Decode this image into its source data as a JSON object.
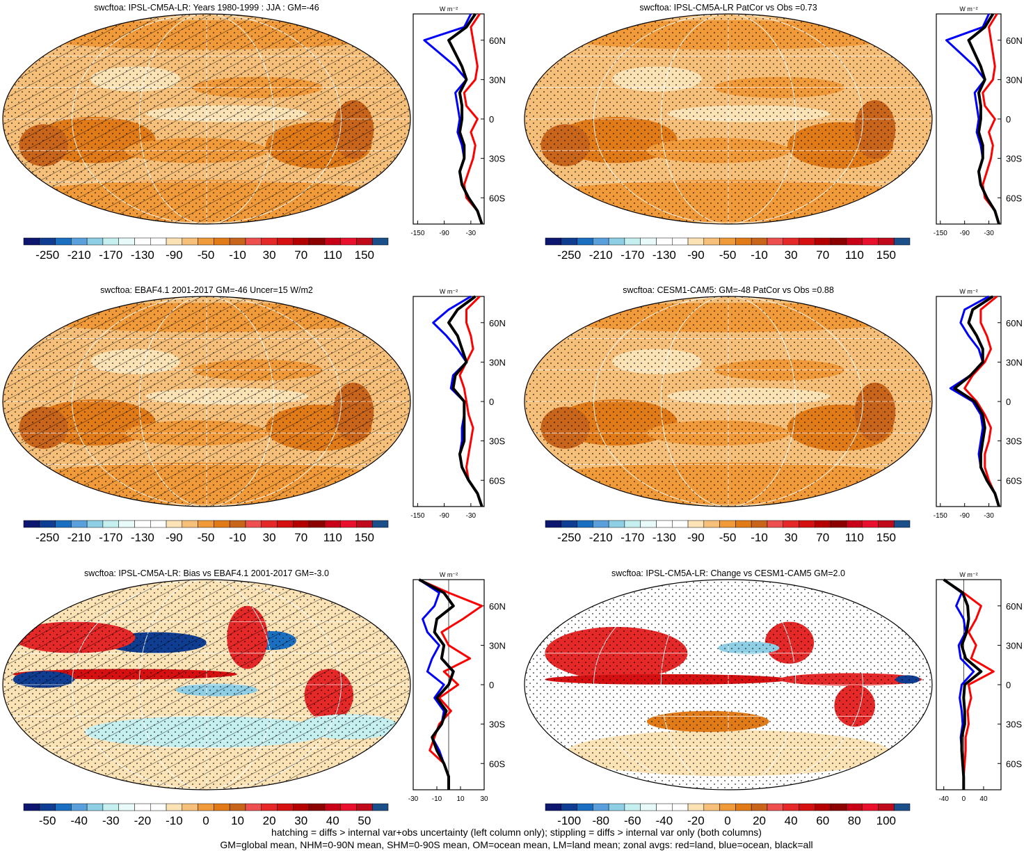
{
  "colormap_colors": [
    "#0d1770",
    "#0e3d91",
    "#1a6fc0",
    "#5aa0dc",
    "#8ecfe5",
    "#c6eff0",
    "#e9fafa",
    "#ffffff",
    "#ffffff",
    "#fbe3b6",
    "#f6c07a",
    "#f19a3a",
    "#e07b18",
    "#c8651a",
    "#ee5050",
    "#e52828",
    "#d61010",
    "#b40000",
    "#8c0000",
    "#c80018",
    "#e8102c",
    "#c00a1c",
    "#1a4f8a"
  ],
  "footer": {
    "line1": "hatching = diffs > internal var+obs uncertainty (left column only); stippling = diffs > internal var only (both columns)",
    "line2": "GM=global mean, NHM=0-90N mean, SHM=0-90S mean, OM=ocean mean, LM=land mean; zonal avgs: red=land, blue=ocean, black=all"
  },
  "zonal_axis_unit": "W m⁻²",
  "zonal_line_colors": {
    "land": "#ff0000",
    "ocean": "#0000ff",
    "all": "#000000"
  },
  "panels": [
    {
      "id": "p1",
      "title": "swcftoa: IPSL-CM5A-LR: Years 1980-1999 : JJA : GM=-46",
      "colorbar_labels": [
        "-250",
        "-210",
        "-170",
        "-130",
        "-90",
        "-50",
        "-10",
        "30",
        "70",
        "110",
        "150"
      ],
      "zonal_ticks": [
        "-150",
        "-90",
        "-30"
      ],
      "lat_labels": [
        "60N",
        "30N",
        "0",
        "30S",
        "60S"
      ],
      "hatched": true
    },
    {
      "id": "p2",
      "title": "swcftoa: IPSL-CM5A-LR PatCor vs Obs =0.73",
      "colorbar_labels": [
        "-250",
        "-210",
        "-170",
        "-130",
        "-90",
        "-50",
        "-10",
        "30",
        "70",
        "110",
        "150"
      ],
      "zonal_ticks": [
        "-150",
        "-90",
        "-30"
      ],
      "lat_labels": [
        "60N",
        "30N",
        "0",
        "30S",
        "60S"
      ],
      "hatched": false
    },
    {
      "id": "p3",
      "title": "swcftoa: EBAF4.1 2001-2017 GM=-46 Uncer=15 W/m2",
      "colorbar_labels": [
        "-250",
        "-210",
        "-170",
        "-130",
        "-90",
        "-50",
        "-10",
        "30",
        "70",
        "110",
        "150"
      ],
      "zonal_ticks": [
        "-150",
        "-90",
        "-30"
      ],
      "lat_labels": [
        "60N",
        "30N",
        "0",
        "30S",
        "60S"
      ],
      "hatched": true
    },
    {
      "id": "p4",
      "title": "swcftoa: CESM1-CAM5: GM=-48 PatCor vs Obs =0.88",
      "colorbar_labels": [
        "-250",
        "-210",
        "-170",
        "-130",
        "-90",
        "-50",
        "-10",
        "30",
        "70",
        "110",
        "150"
      ],
      "zonal_ticks": [
        "-150",
        "-90",
        "-30"
      ],
      "lat_labels": [
        "60N",
        "30N",
        "0",
        "30S",
        "60S"
      ],
      "hatched": false
    },
    {
      "id": "p5",
      "title": "swcftoa: IPSL-CM5A-LR: Bias vs EBAF4.1 2001-2017 GM=-3.0",
      "colorbar_labels": [
        "-50",
        "-40",
        "-30",
        "-20",
        "-10",
        "0",
        "10",
        "20",
        "30",
        "40",
        "50"
      ],
      "zonal_ticks": [
        "-30",
        "-10",
        "10",
        "30"
      ],
      "lat_labels": [
        "60N",
        "30N",
        "0",
        "30S",
        "60S"
      ],
      "hatched": true
    },
    {
      "id": "p6",
      "title": "swcftoa: IPSL-CM5A-LR: Change vs CESM1-CAM5 GM=2.0",
      "colorbar_labels": [
        "-100",
        "-80",
        "-60",
        "-40",
        "-20",
        "0",
        "20",
        "40",
        "60",
        "80",
        "100"
      ],
      "zonal_ticks": [
        "-40",
        "0",
        "40"
      ],
      "lat_labels": [
        "60N",
        "30N",
        "0",
        "30S",
        "60S"
      ],
      "hatched": false
    }
  ],
  "chart_data": [
    {
      "type": "heatmap",
      "title": "swcftoa: IPSL-CM5A-LR: Years 1980-1999 : JJA : GM=-46",
      "colorbar": [
        -250,
        -210,
        -170,
        -130,
        -90,
        -50,
        -10,
        30,
        70,
        110,
        150
      ],
      "zonal": {
        "lat": [
          80,
          70,
          60,
          50,
          40,
          30,
          20,
          10,
          0,
          -10,
          -20,
          -30,
          -40,
          -50,
          -60,
          -70,
          -80
        ],
        "land": [
          -10,
          -30,
          -25,
          -20,
          -15,
          -20,
          -45,
          -40,
          -15,
          -30,
          -20,
          -25,
          -35,
          -45,
          -40,
          -15,
          -5
        ],
        "ocean": [
          -30,
          -45,
          -135,
          -100,
          -65,
          -40,
          -65,
          -60,
          -55,
          -60,
          -50,
          -45,
          -55,
          -50,
          -35,
          -15,
          -5
        ],
        "all": [
          -20,
          -40,
          -80,
          -65,
          -50,
          -40,
          -55,
          -50,
          -50,
          -55,
          -45,
          -45,
          -55,
          -50,
          -35,
          -15,
          -5
        ],
        "xlim": [
          -160,
          0
        ],
        "xticks": [
          -150,
          -90,
          -30
        ]
      }
    },
    {
      "type": "heatmap",
      "title": "swcftoa: IPSL-CM5A-LR PatCor vs Obs =0.73",
      "colorbar": [
        -250,
        -210,
        -170,
        -130,
        -90,
        -50,
        -10,
        30,
        70,
        110,
        150
      ],
      "zonal": {
        "lat": [
          80,
          70,
          60,
          50,
          40,
          30,
          20,
          10,
          0,
          -10,
          -20,
          -30,
          -40,
          -50,
          -60,
          -70,
          -80
        ],
        "land": [
          -10,
          -30,
          -25,
          -20,
          -15,
          -20,
          -45,
          -40,
          -15,
          -30,
          -20,
          -25,
          -35,
          -45,
          -40,
          -15,
          -5
        ],
        "ocean": [
          -30,
          -45,
          -135,
          -100,
          -65,
          -40,
          -65,
          -60,
          -55,
          -60,
          -50,
          -45,
          -55,
          -50,
          -35,
          -15,
          -5
        ],
        "all": [
          -20,
          -40,
          -80,
          -65,
          -50,
          -40,
          -55,
          -50,
          -50,
          -55,
          -45,
          -45,
          -55,
          -50,
          -35,
          -15,
          -5
        ],
        "xlim": [
          -160,
          0
        ],
        "xticks": [
          -150,
          -90,
          -30
        ]
      }
    },
    {
      "type": "heatmap",
      "title": "swcftoa: EBAF4.1 2001-2017 GM=-46 Uncer=15 W/m2",
      "colorbar": [
        -250,
        -210,
        -170,
        -130,
        -90,
        -50,
        -10,
        30,
        70,
        110,
        150
      ],
      "zonal": {
        "lat": [
          80,
          70,
          60,
          50,
          40,
          30,
          20,
          10,
          0,
          -10,
          -20,
          -30,
          -40,
          -50,
          -60,
          -70,
          -80
        ],
        "land": [
          -10,
          -40,
          -40,
          -30,
          -25,
          -40,
          -55,
          -45,
          -40,
          -35,
          -25,
          -30,
          -35,
          -40,
          -35,
          -15,
          -5
        ],
        "ocean": [
          -30,
          -80,
          -115,
          -85,
          -60,
          -40,
          -70,
          -75,
          -45,
          -45,
          -50,
          -50,
          -55,
          -50,
          -35,
          -15,
          -5
        ],
        "all": [
          -20,
          -60,
          -80,
          -60,
          -50,
          -40,
          -65,
          -70,
          -45,
          -45,
          -45,
          -45,
          -55,
          -50,
          -35,
          -15,
          -5
        ],
        "xlim": [
          -160,
          0
        ],
        "xticks": [
          -150,
          -90,
          -30
        ]
      }
    },
    {
      "type": "heatmap",
      "title": "swcftoa: CESM1-CAM5: GM=-48 PatCor vs Obs =0.88",
      "colorbar": [
        -250,
        -210,
        -170,
        -130,
        -90,
        -50,
        -10,
        30,
        70,
        110,
        150
      ],
      "zonal": {
        "lat": [
          80,
          70,
          60,
          50,
          40,
          30,
          20,
          10,
          0,
          -10,
          -20,
          -30,
          -40,
          -50,
          -60,
          -70,
          -80
        ],
        "land": [
          -10,
          -50,
          -50,
          -35,
          -25,
          -40,
          -70,
          -90,
          -60,
          -40,
          -25,
          -30,
          -40,
          -40,
          -30,
          -15,
          -5
        ],
        "ocean": [
          -30,
          -90,
          -100,
          -80,
          -55,
          -45,
          -75,
          -125,
          -70,
          -50,
          -45,
          -50,
          -55,
          -50,
          -35,
          -15,
          -5
        ],
        "all": [
          -20,
          -70,
          -80,
          -60,
          -45,
          -45,
          -75,
          -115,
          -65,
          -45,
          -40,
          -45,
          -50,
          -50,
          -35,
          -15,
          -5
        ],
        "xlim": [
          -160,
          0
        ],
        "xticks": [
          -150,
          -90,
          -30
        ]
      }
    },
    {
      "type": "heatmap",
      "title": "swcftoa: IPSL-CM5A-LR: Bias vs EBAF4.1 2001-2017 GM=-3.0",
      "colorbar": [
        -50,
        -40,
        -30,
        -20,
        -10,
        0,
        10,
        20,
        30,
        40,
        50
      ],
      "zonal": {
        "lat": [
          80,
          70,
          60,
          50,
          40,
          30,
          20,
          10,
          0,
          -10,
          -20,
          -30,
          -40,
          -50,
          -60,
          -70,
          -80
        ],
        "land": [
          -25,
          0,
          28,
          12,
          -6,
          0,
          18,
          -4,
          8,
          -8,
          2,
          -8,
          -12,
          -16,
          -4,
          0,
          0
        ],
        "ocean": [
          -25,
          -8,
          -12,
          -22,
          -18,
          -8,
          -14,
          -18,
          -4,
          -12,
          -4,
          -6,
          -14,
          -8,
          -4,
          0,
          0
        ],
        "all": [
          -25,
          -4,
          4,
          -10,
          -12,
          -4,
          -6,
          4,
          0,
          -10,
          -2,
          -6,
          -14,
          -10,
          -4,
          0,
          0
        ],
        "xlim": [
          -30,
          30
        ],
        "xticks": [
          -30,
          -10,
          10,
          30
        ]
      }
    },
    {
      "type": "heatmap",
      "title": "swcftoa: IPSL-CM5A-LR: Change vs CESM1-CAM5 GM=2.0",
      "colorbar": [
        -100,
        -80,
        -60,
        -40,
        -20,
        0,
        20,
        40,
        60,
        80,
        100
      ],
      "zonal": {
        "lat": [
          80,
          70,
          60,
          50,
          40,
          30,
          20,
          10,
          0,
          -10,
          -20,
          -30,
          -40,
          -50,
          -60,
          -70,
          -80
        ],
        "land": [
          -40,
          0,
          35,
          25,
          10,
          25,
          15,
          60,
          10,
          15,
          8,
          10,
          4,
          4,
          2,
          0,
          0
        ],
        "ocean": [
          -40,
          -4,
          -15,
          0,
          4,
          -10,
          -6,
          20,
          -4,
          -8,
          -4,
          -2,
          -6,
          -4,
          -2,
          0,
          0
        ],
        "all": [
          -40,
          -2,
          8,
          10,
          6,
          -4,
          4,
          35,
          2,
          0,
          2,
          2,
          -4,
          -4,
          -2,
          0,
          0
        ],
        "xlim": [
          -55,
          75
        ],
        "xticks": [
          -40,
          0,
          40
        ]
      }
    }
  ]
}
